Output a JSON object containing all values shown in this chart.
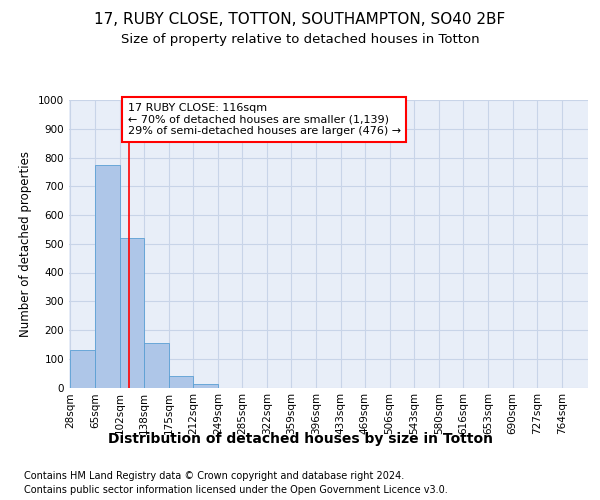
{
  "title": "17, RUBY CLOSE, TOTTON, SOUTHAMPTON, SO40 2BF",
  "subtitle": "Size of property relative to detached houses in Totton",
  "xlabel": "Distribution of detached houses by size in Totton",
  "ylabel": "Number of detached properties",
  "footer1": "Contains HM Land Registry data © Crown copyright and database right 2024.",
  "footer2": "Contains public sector information licensed under the Open Government Licence v3.0.",
  "bin_labels": [
    "28sqm",
    "65sqm",
    "102sqm",
    "138sqm",
    "175sqm",
    "212sqm",
    "249sqm",
    "285sqm",
    "322sqm",
    "359sqm",
    "396sqm",
    "433sqm",
    "469sqm",
    "506sqm",
    "543sqm",
    "580sqm",
    "616sqm",
    "653sqm",
    "690sqm",
    "727sqm",
    "764sqm"
  ],
  "bar_values": [
    130,
    775,
    520,
    155,
    40,
    13,
    0,
    0,
    0,
    0,
    0,
    0,
    0,
    0,
    0,
    0,
    0,
    0,
    0,
    0
  ],
  "bin_edges": [
    28,
    65,
    102,
    138,
    175,
    212,
    249,
    285,
    322,
    359,
    396,
    433,
    469,
    506,
    543,
    580,
    616,
    653,
    690,
    727,
    764
  ],
  "bar_color": "#aec6e8",
  "bar_edge_color": "#5a9fd4",
  "property_line_x": 116,
  "property_line_color": "red",
  "annotation_line1": "17 RUBY CLOSE: 116sqm",
  "annotation_line2": "← 70% of detached houses are smaller (1,139)",
  "annotation_line3": "29% of semi-detached houses are larger (476) →",
  "annotation_box_color": "red",
  "ylim": [
    0,
    1000
  ],
  "yticks": [
    0,
    100,
    200,
    300,
    400,
    500,
    600,
    700,
    800,
    900,
    1000
  ],
  "grid_color": "#c8d4e8",
  "background_color": "#e8eef8",
  "fig_background": "#ffffff",
  "title_fontsize": 11,
  "subtitle_fontsize": 9.5,
  "xlabel_fontsize": 10,
  "ylabel_fontsize": 8.5,
  "tick_fontsize": 7.5,
  "annotation_fontsize": 8,
  "footer_fontsize": 7
}
